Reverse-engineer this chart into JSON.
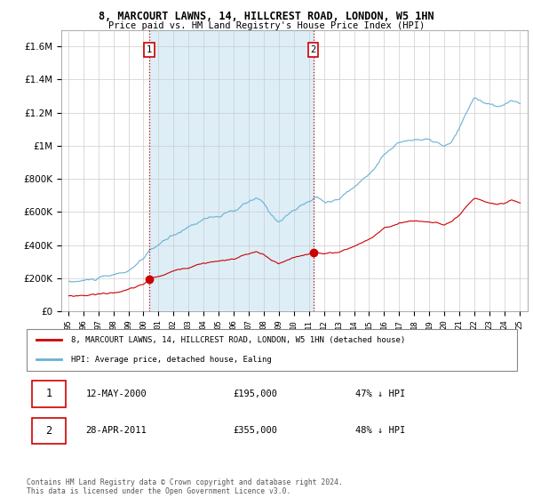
{
  "title": "8, MARCOURT LAWNS, 14, HILLCREST ROAD, LONDON, W5 1HN",
  "subtitle": "Price paid vs. HM Land Registry's House Price Index (HPI)",
  "hpi_color": "#6ab0d4",
  "hpi_fill_color": "#ddeef7",
  "property_color": "#cc0000",
  "sale1_year_idx": 61,
  "sale1_price": 195000,
  "sale2_year_idx": 193,
  "sale2_price": 355000,
  "ylim": [
    0,
    1700000
  ],
  "legend_property": "8, MARCOURT LAWNS, 14, HILLCREST ROAD, LONDON, W5 1HN (detached house)",
  "legend_hpi": "HPI: Average price, detached house, Ealing",
  "transaction1_date": "12-MAY-2000",
  "transaction1_price": "£195,000",
  "transaction1_note": "47% ↓ HPI",
  "transaction2_date": "28-APR-2011",
  "transaction2_price": "£355,000",
  "transaction2_note": "48% ↓ HPI",
  "footer": "Contains HM Land Registry data © Crown copyright and database right 2024.\nThis data is licensed under the Open Government Licence v3.0."
}
